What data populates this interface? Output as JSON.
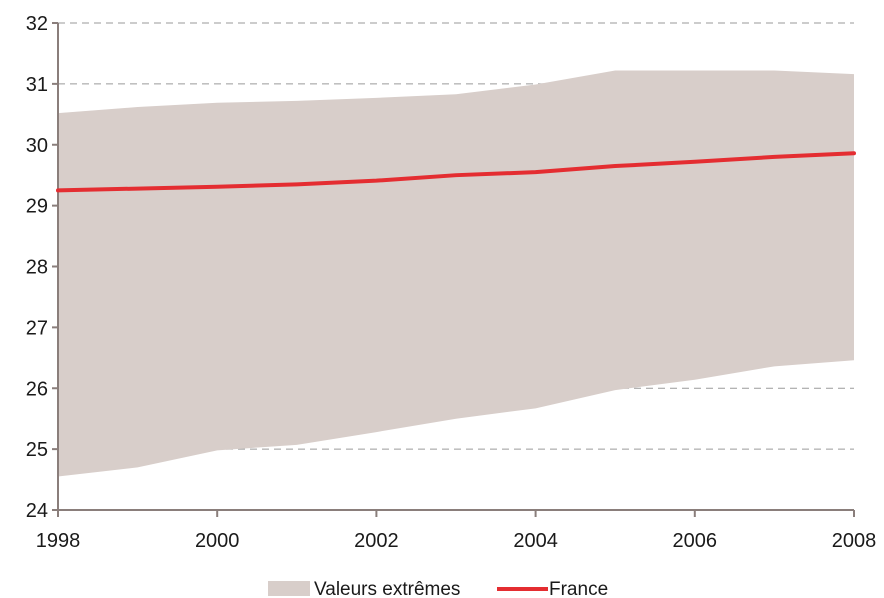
{
  "chart_data": {
    "type": "area",
    "x": [
      1998,
      1999,
      2000,
      2001,
      2002,
      2003,
      2004,
      2005,
      2006,
      2007,
      2008
    ],
    "xticks": [
      1998,
      2000,
      2002,
      2004,
      2006,
      2008
    ],
    "yticks": [
      24,
      25,
      26,
      27,
      28,
      29,
      30,
      31,
      32
    ],
    "xlim": [
      1998,
      2008
    ],
    "ylim": [
      24,
      32
    ],
    "grid": "horizontal dashed",
    "legend_position": "bottom",
    "series": [
      {
        "name": "Valeurs extrêmes",
        "kind": "band",
        "upper": [
          30.52,
          30.62,
          30.69,
          30.72,
          30.77,
          30.83,
          30.99,
          31.22,
          31.22,
          31.22,
          31.16
        ],
        "lower": [
          24.55,
          24.7,
          24.98,
          25.07,
          25.28,
          25.5,
          25.67,
          25.97,
          26.14,
          26.36,
          26.46
        ],
        "color": "#d8ceca"
      },
      {
        "name": "France",
        "kind": "line",
        "values": [
          29.25,
          29.28,
          29.31,
          29.35,
          29.41,
          29.5,
          29.55,
          29.65,
          29.72,
          29.8,
          29.86
        ],
        "color": "#e42d31"
      }
    ]
  }
}
